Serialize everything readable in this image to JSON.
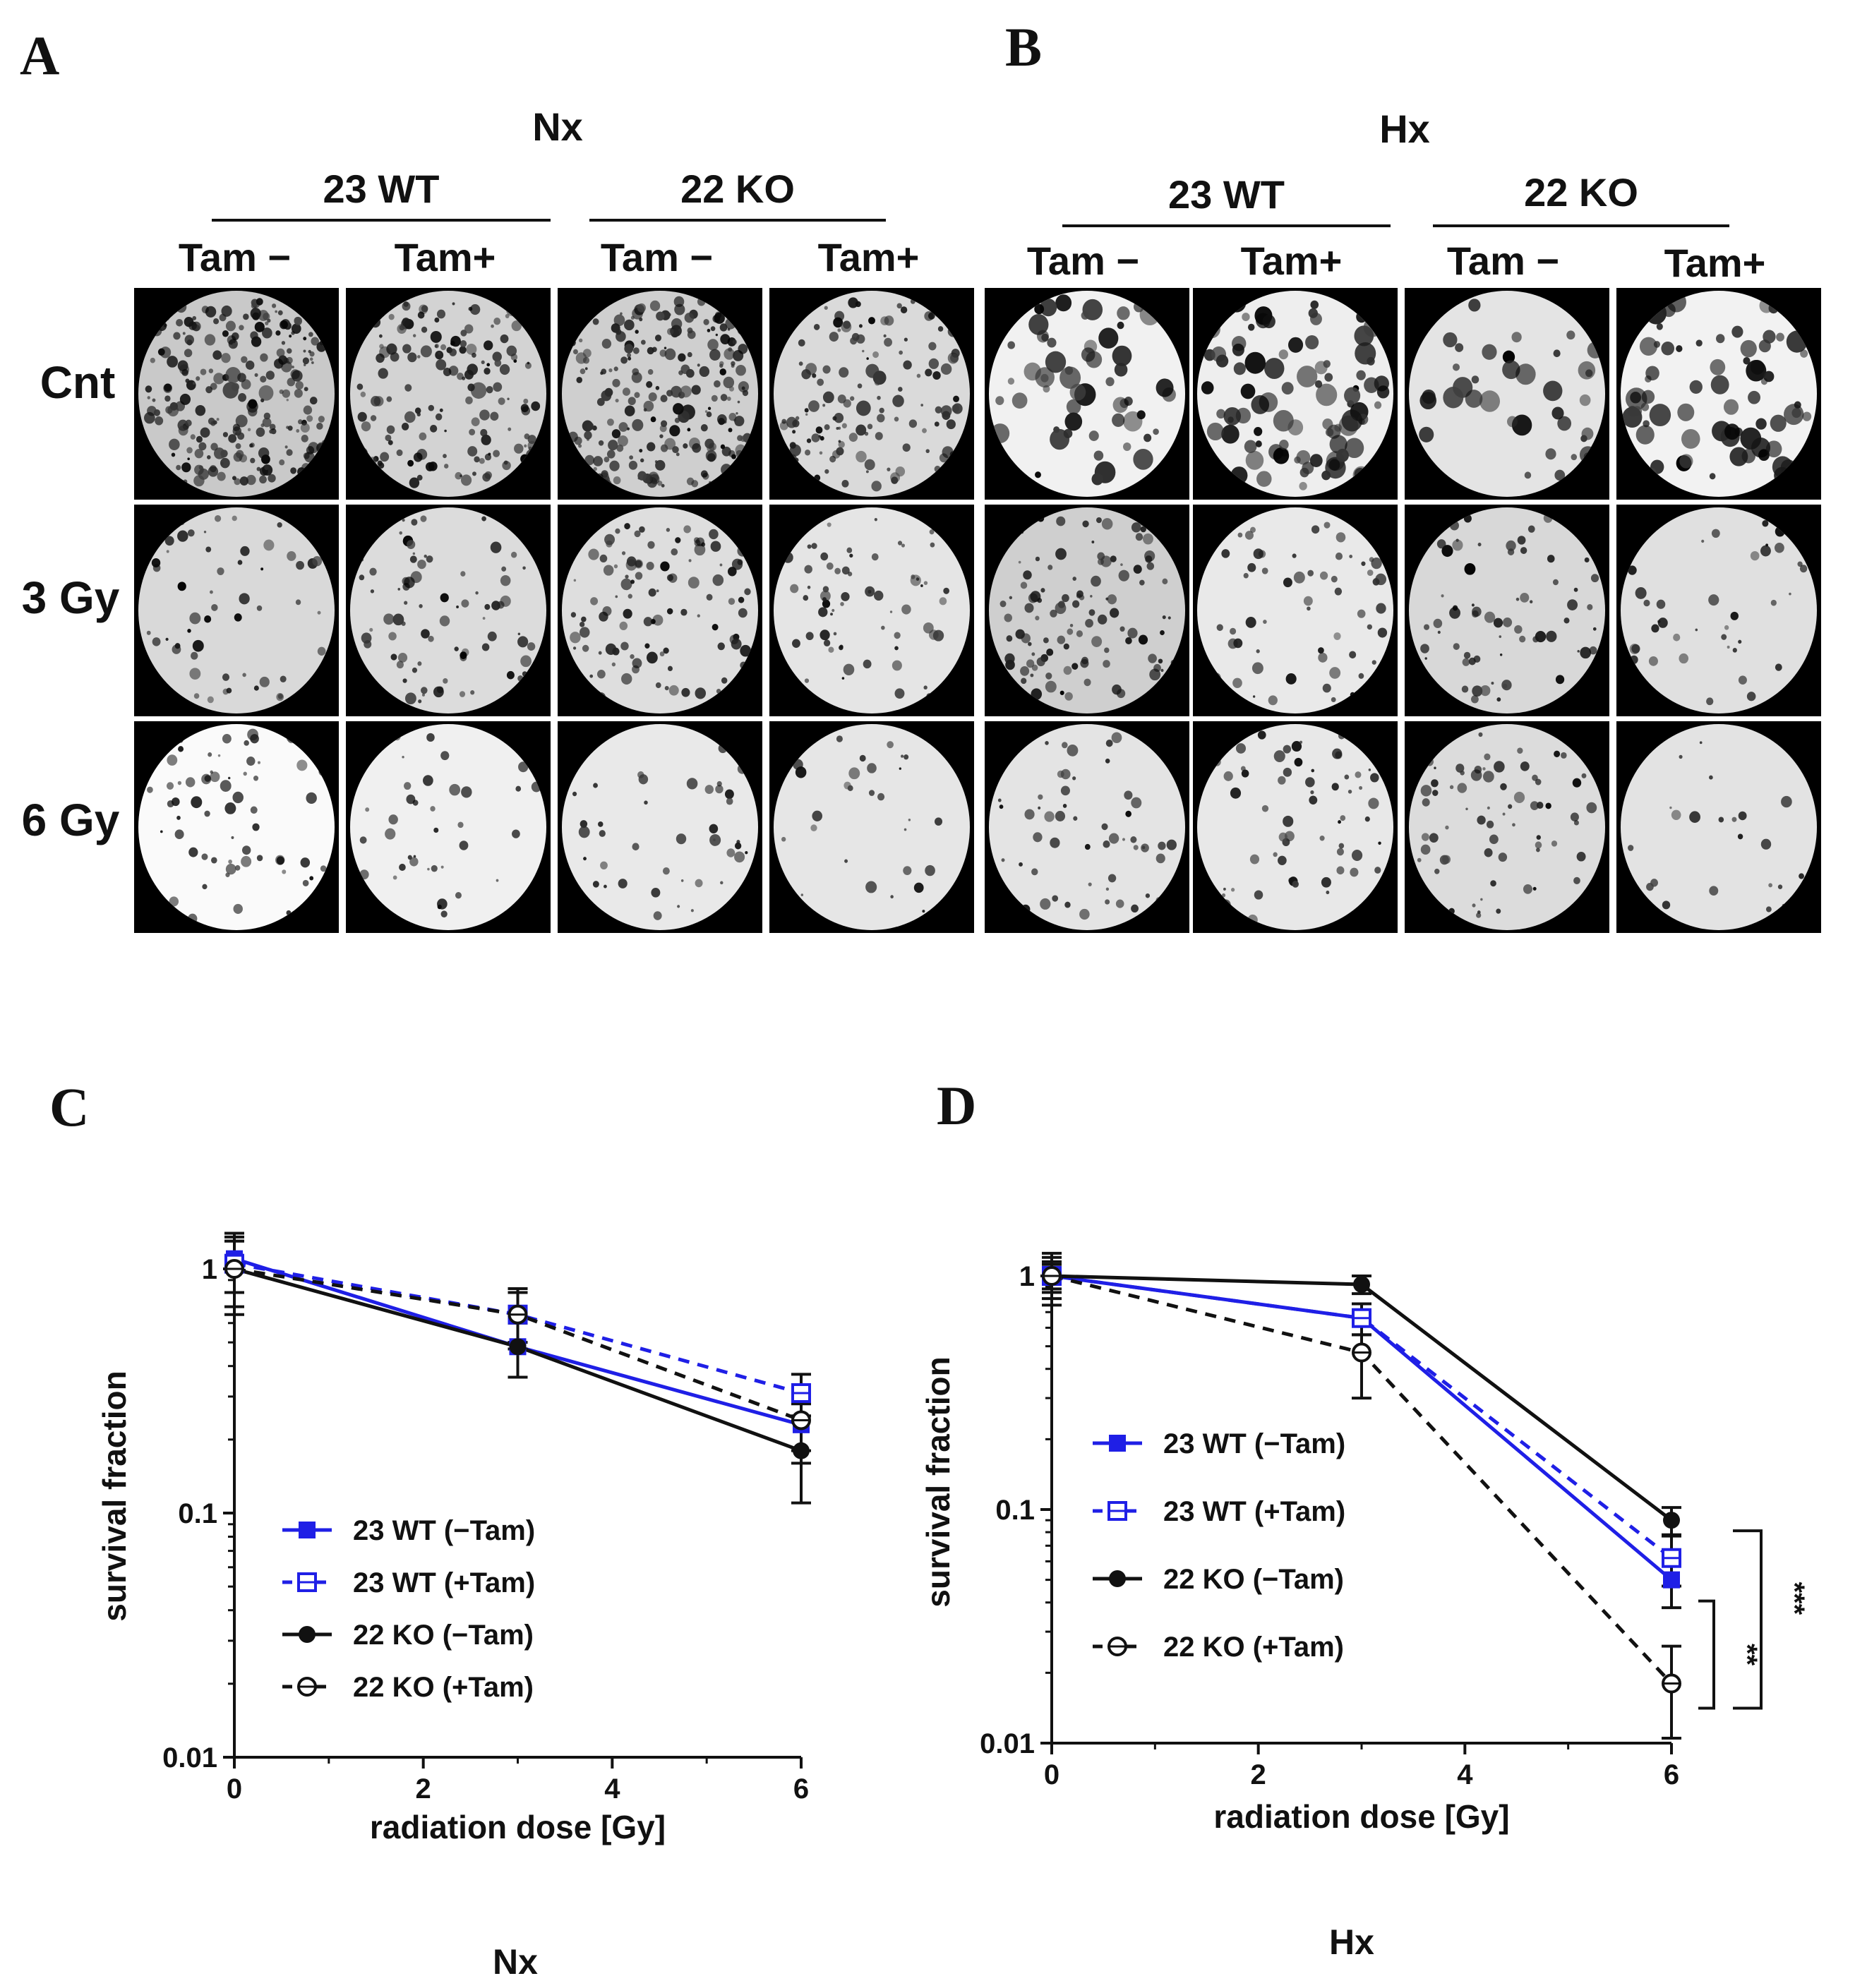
{
  "panels": {
    "A": "A",
    "B": "B",
    "C": "C",
    "D": "D"
  },
  "colony_grid": {
    "conditions": [
      "Nx",
      "Hx"
    ],
    "genotypes": [
      "23 WT",
      "22 KO",
      "23 WT",
      "22 KO"
    ],
    "treatments": [
      "Tam −",
      "Tam+",
      "Tam −",
      "Tam+",
      "Tam −",
      "Tam+",
      "Tam −",
      "Tam+"
    ],
    "rows": [
      "Cnt",
      "3 Gy",
      "6 Gy"
    ]
  },
  "colors": {
    "blue": "#1f1fe6",
    "black": "#111111"
  },
  "chart_data": [
    {
      "type": "line",
      "panel": "C",
      "title": "",
      "caption": "Nx",
      "xlabel": "radiation dose [Gy]",
      "ylabel": "survival fraction",
      "xscale": "linear",
      "yscale": "log",
      "xlim": [
        0,
        6
      ],
      "ylim": [
        0.01,
        1.6
      ],
      "xticks": [
        0,
        2,
        4,
        6
      ],
      "yticks": [
        0.01,
        0.1,
        1
      ],
      "ytick_labels": [
        "0.01",
        "0.1",
        "1"
      ],
      "legend_position": "lower-left",
      "series": [
        {
          "name": "23 WT (−Tam)",
          "color": "#1f1fe6",
          "line": "solid",
          "marker": "filled-square",
          "x": [
            0,
            3,
            6
          ],
          "y": [
            1.1,
            0.48,
            0.23
          ],
          "err": [
            0.3,
            0.12,
            0.05
          ]
        },
        {
          "name": "23 WT (+Tam)",
          "color": "#1f1fe6",
          "line": "dashed",
          "marker": "open-square",
          "x": [
            0,
            3,
            6
          ],
          "y": [
            1.05,
            0.65,
            0.31
          ],
          "err": [
            0.25,
            0.15,
            0.06
          ]
        },
        {
          "name": "22 KO (−Tam)",
          "color": "#111111",
          "line": "solid",
          "marker": "filled-circle",
          "x": [
            0,
            3,
            6
          ],
          "y": [
            1.0,
            0.48,
            0.18
          ],
          "err": [
            0.35,
            0.12,
            0.07
          ]
        },
        {
          "name": "22 KO (+Tam)",
          "color": "#111111",
          "line": "dashed",
          "marker": "open-circle",
          "x": [
            0,
            3,
            6
          ],
          "y": [
            1.0,
            0.65,
            0.24
          ],
          "err": [
            0.3,
            0.18,
            0.08
          ]
        }
      ]
    },
    {
      "type": "line",
      "panel": "D",
      "title": "",
      "caption": "Hx",
      "xlabel": "radiation dose [Gy]",
      "ylabel": "survival fraction",
      "xscale": "linear",
      "yscale": "log",
      "xlim": [
        0,
        6
      ],
      "ylim": [
        0.01,
        1.3
      ],
      "xticks": [
        0,
        2,
        4,
        6
      ],
      "yticks": [
        0.01,
        0.1,
        1
      ],
      "ytick_labels": [
        "0.01",
        "0.1",
        "1"
      ],
      "legend_position": "middle-left",
      "series": [
        {
          "name": "23 WT (−Tam)",
          "color": "#1f1fe6",
          "line": "solid",
          "marker": "filled-square",
          "x": [
            0,
            3,
            6
          ],
          "y": [
            1.0,
            0.66,
            0.05
          ],
          "err": [
            0.15,
            0.1,
            0.012
          ]
        },
        {
          "name": "23 WT (+Tam)",
          "color": "#1f1fe6",
          "line": "dashed",
          "marker": "open-square",
          "x": [
            0,
            3,
            6
          ],
          "y": [
            1.0,
            0.66,
            0.062
          ],
          "err": [
            0.12,
            0.1,
            0.015
          ]
        },
        {
          "name": "22 KO (−Tam)",
          "color": "#111111",
          "line": "solid",
          "marker": "filled-circle",
          "x": [
            0,
            3,
            6
          ],
          "y": [
            1.0,
            0.92,
            0.09
          ],
          "err": [
            0.2,
            0.08,
            0.012
          ]
        },
        {
          "name": "22 KO (+Tam)",
          "color": "#111111",
          "line": "dashed",
          "marker": "open-circle",
          "x": [
            0,
            3,
            6
          ],
          "y": [
            1.0,
            0.47,
            0.018
          ],
          "err": [
            0.25,
            0.17,
            0.008
          ]
        }
      ],
      "annotations": [
        {
          "text": "**",
          "between": [
            "22 KO (+Tam)",
            "23 WT (−Tam)"
          ]
        },
        {
          "text": "***",
          "between": [
            "22 KO (+Tam)",
            "22 KO (−Tam)"
          ]
        }
      ]
    }
  ]
}
